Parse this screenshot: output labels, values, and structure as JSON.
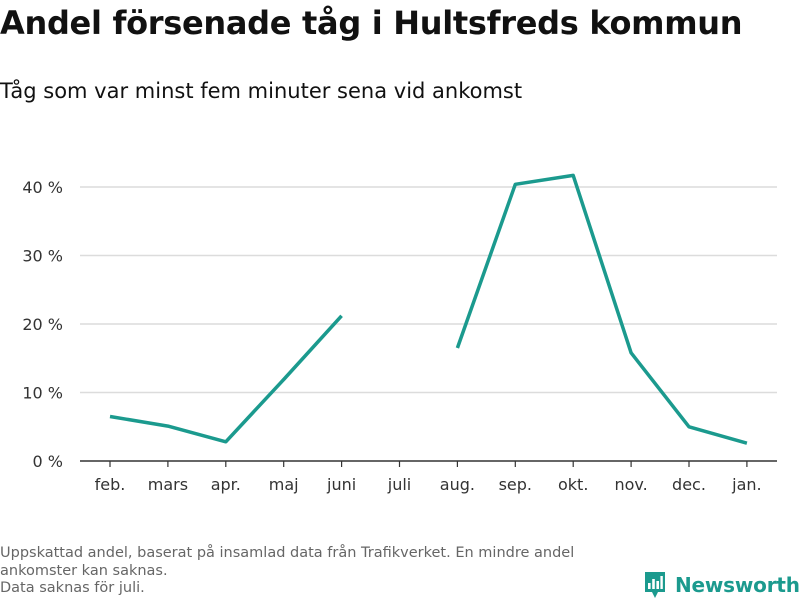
{
  "title": "Andel försenade tåg i Hultsfreds kommun",
  "subtitle": "Tåg som var minst fem minuter sena vid ankomst",
  "footer": {
    "note1": "Uppskattad andel, baserat på insamlad data från Trafikverket. En mindre andel ankomster kan saknas.",
    "note2": "Data saknas för juli."
  },
  "brand": {
    "name": "Newsworthy",
    "color": "#1b9a8e"
  },
  "chart_data": {
    "type": "line",
    "categories": [
      "feb.",
      "mars",
      "apr.",
      "maj",
      "juni",
      "juli",
      "aug.",
      "sep.",
      "okt.",
      "nov.",
      "dec.",
      "jan."
    ],
    "series": [
      {
        "values": [
          6.5,
          5.1,
          2.8,
          11.9,
          21.2,
          null,
          16.5,
          40.4,
          41.7,
          15.8,
          5.0,
          2.6
        ]
      }
    ],
    "yticks": [
      0,
      10,
      20,
      30,
      40
    ],
    "ytick_suffix": " %",
    "ylim": [
      0,
      40
    ],
    "grid": true,
    "line_color": "#1b9a8e",
    "grid_color": "#dcdcdc",
    "axis_color": "#333333",
    "label_color": "#333333"
  }
}
